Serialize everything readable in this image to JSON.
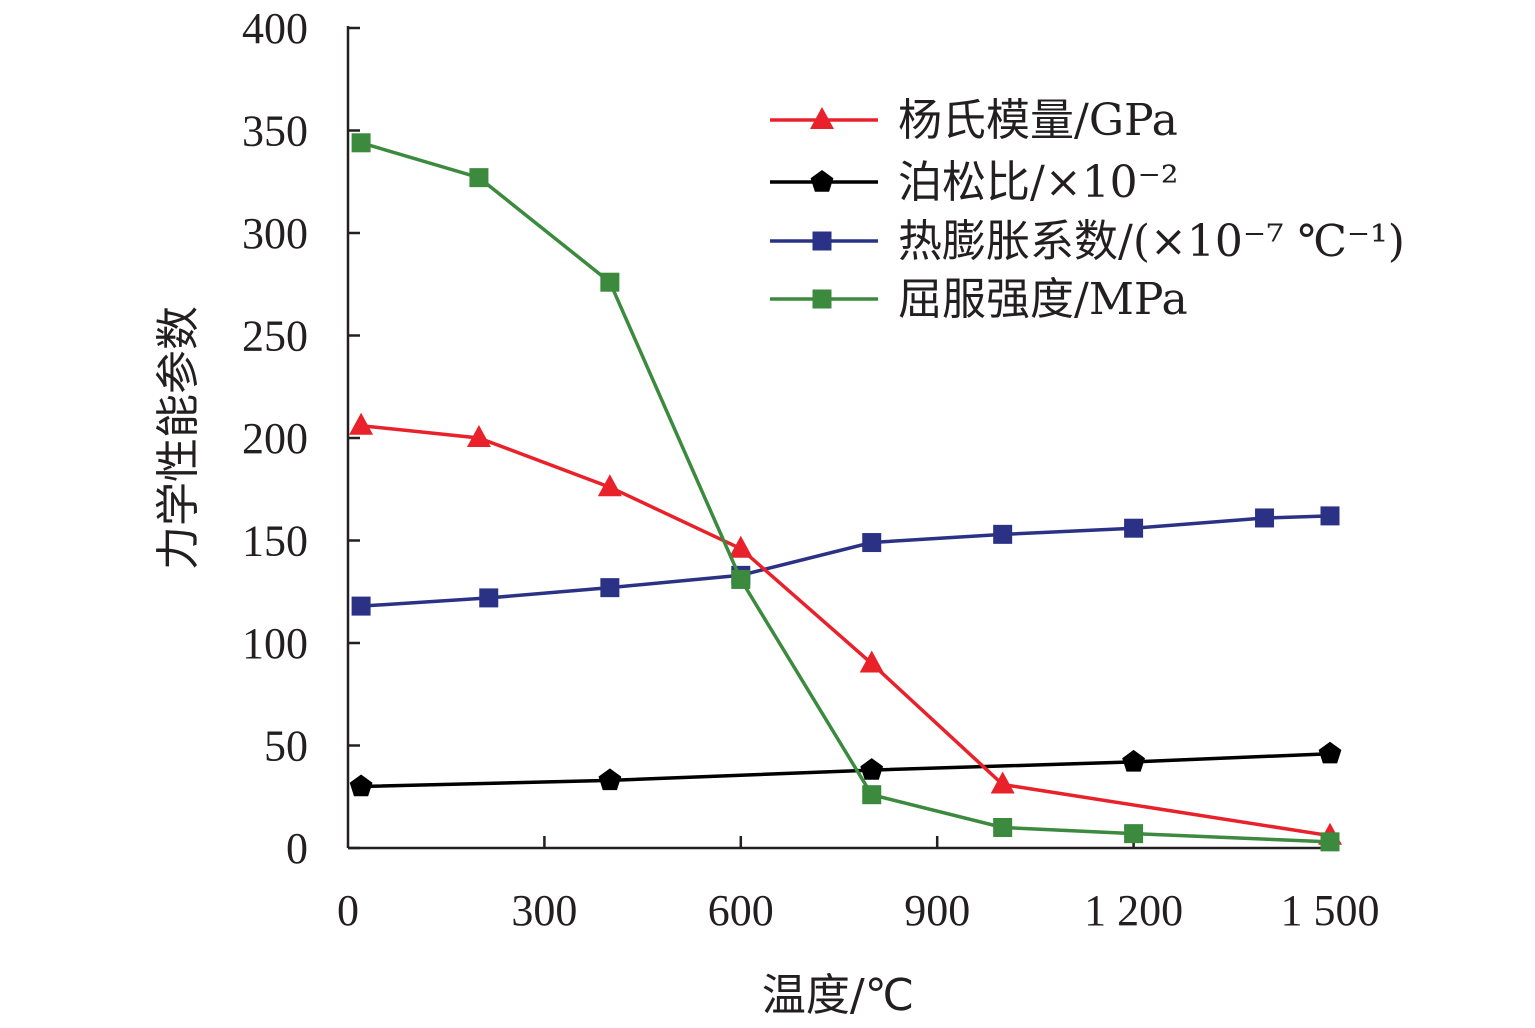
{
  "chart_data": {
    "type": "line",
    "xlabel": "温度/℃",
    "ylabel": "力学性能参数",
    "xlim": [
      0,
      1500
    ],
    "ylim": [
      0,
      400
    ],
    "x_ticks": [
      {
        "value": 0,
        "label": "0"
      },
      {
        "value": 300,
        "label": "300"
      },
      {
        "value": 600,
        "label": "600"
      },
      {
        "value": 900,
        "label": "900"
      },
      {
        "value": 1200,
        "label": "1 200"
      },
      {
        "value": 1500,
        "label": "1 500"
      }
    ],
    "y_ticks": [
      {
        "value": 0,
        "label": "0"
      },
      {
        "value": 50,
        "label": "50"
      },
      {
        "value": 100,
        "label": "100"
      },
      {
        "value": 150,
        "label": "150"
      },
      {
        "value": 200,
        "label": "200"
      },
      {
        "value": 250,
        "label": "250"
      },
      {
        "value": 300,
        "label": "300"
      },
      {
        "value": 350,
        "label": "350"
      },
      {
        "value": 400,
        "label": "400"
      }
    ],
    "grid": false,
    "legend_position": "top-right",
    "series": [
      {
        "name": "杨氏模量/GPa",
        "color": "#e8212a",
        "marker": "triangle",
        "x": [
          20,
          200,
          400,
          600,
          800,
          1000,
          1500
        ],
        "y": [
          206,
          200,
          176,
          146,
          90,
          31,
          6
        ]
      },
      {
        "name": "泊松比/×10⁻²",
        "color": "#000000",
        "marker": "pentagon",
        "x": [
          20,
          400,
          800,
          1200,
          1500
        ],
        "y": [
          30,
          33,
          38,
          42,
          46
        ]
      },
      {
        "name": "热膨胀系数/(×10⁻⁷ ℃⁻¹)",
        "color": "#2b3286",
        "marker": "square",
        "x": [
          20,
          215,
          400,
          600,
          800,
          1000,
          1200,
          1400,
          1500
        ],
        "y": [
          118,
          122,
          127,
          133,
          149,
          153,
          156,
          161,
          162
        ]
      },
      {
        "name": "屈服强度/MPa",
        "color": "#3b8a3e",
        "marker": "square",
        "x": [
          20,
          200,
          400,
          600,
          800,
          1000,
          1200,
          1500
        ],
        "y": [
          344,
          327,
          276,
          131,
          26,
          10,
          7,
          3
        ]
      }
    ]
  }
}
